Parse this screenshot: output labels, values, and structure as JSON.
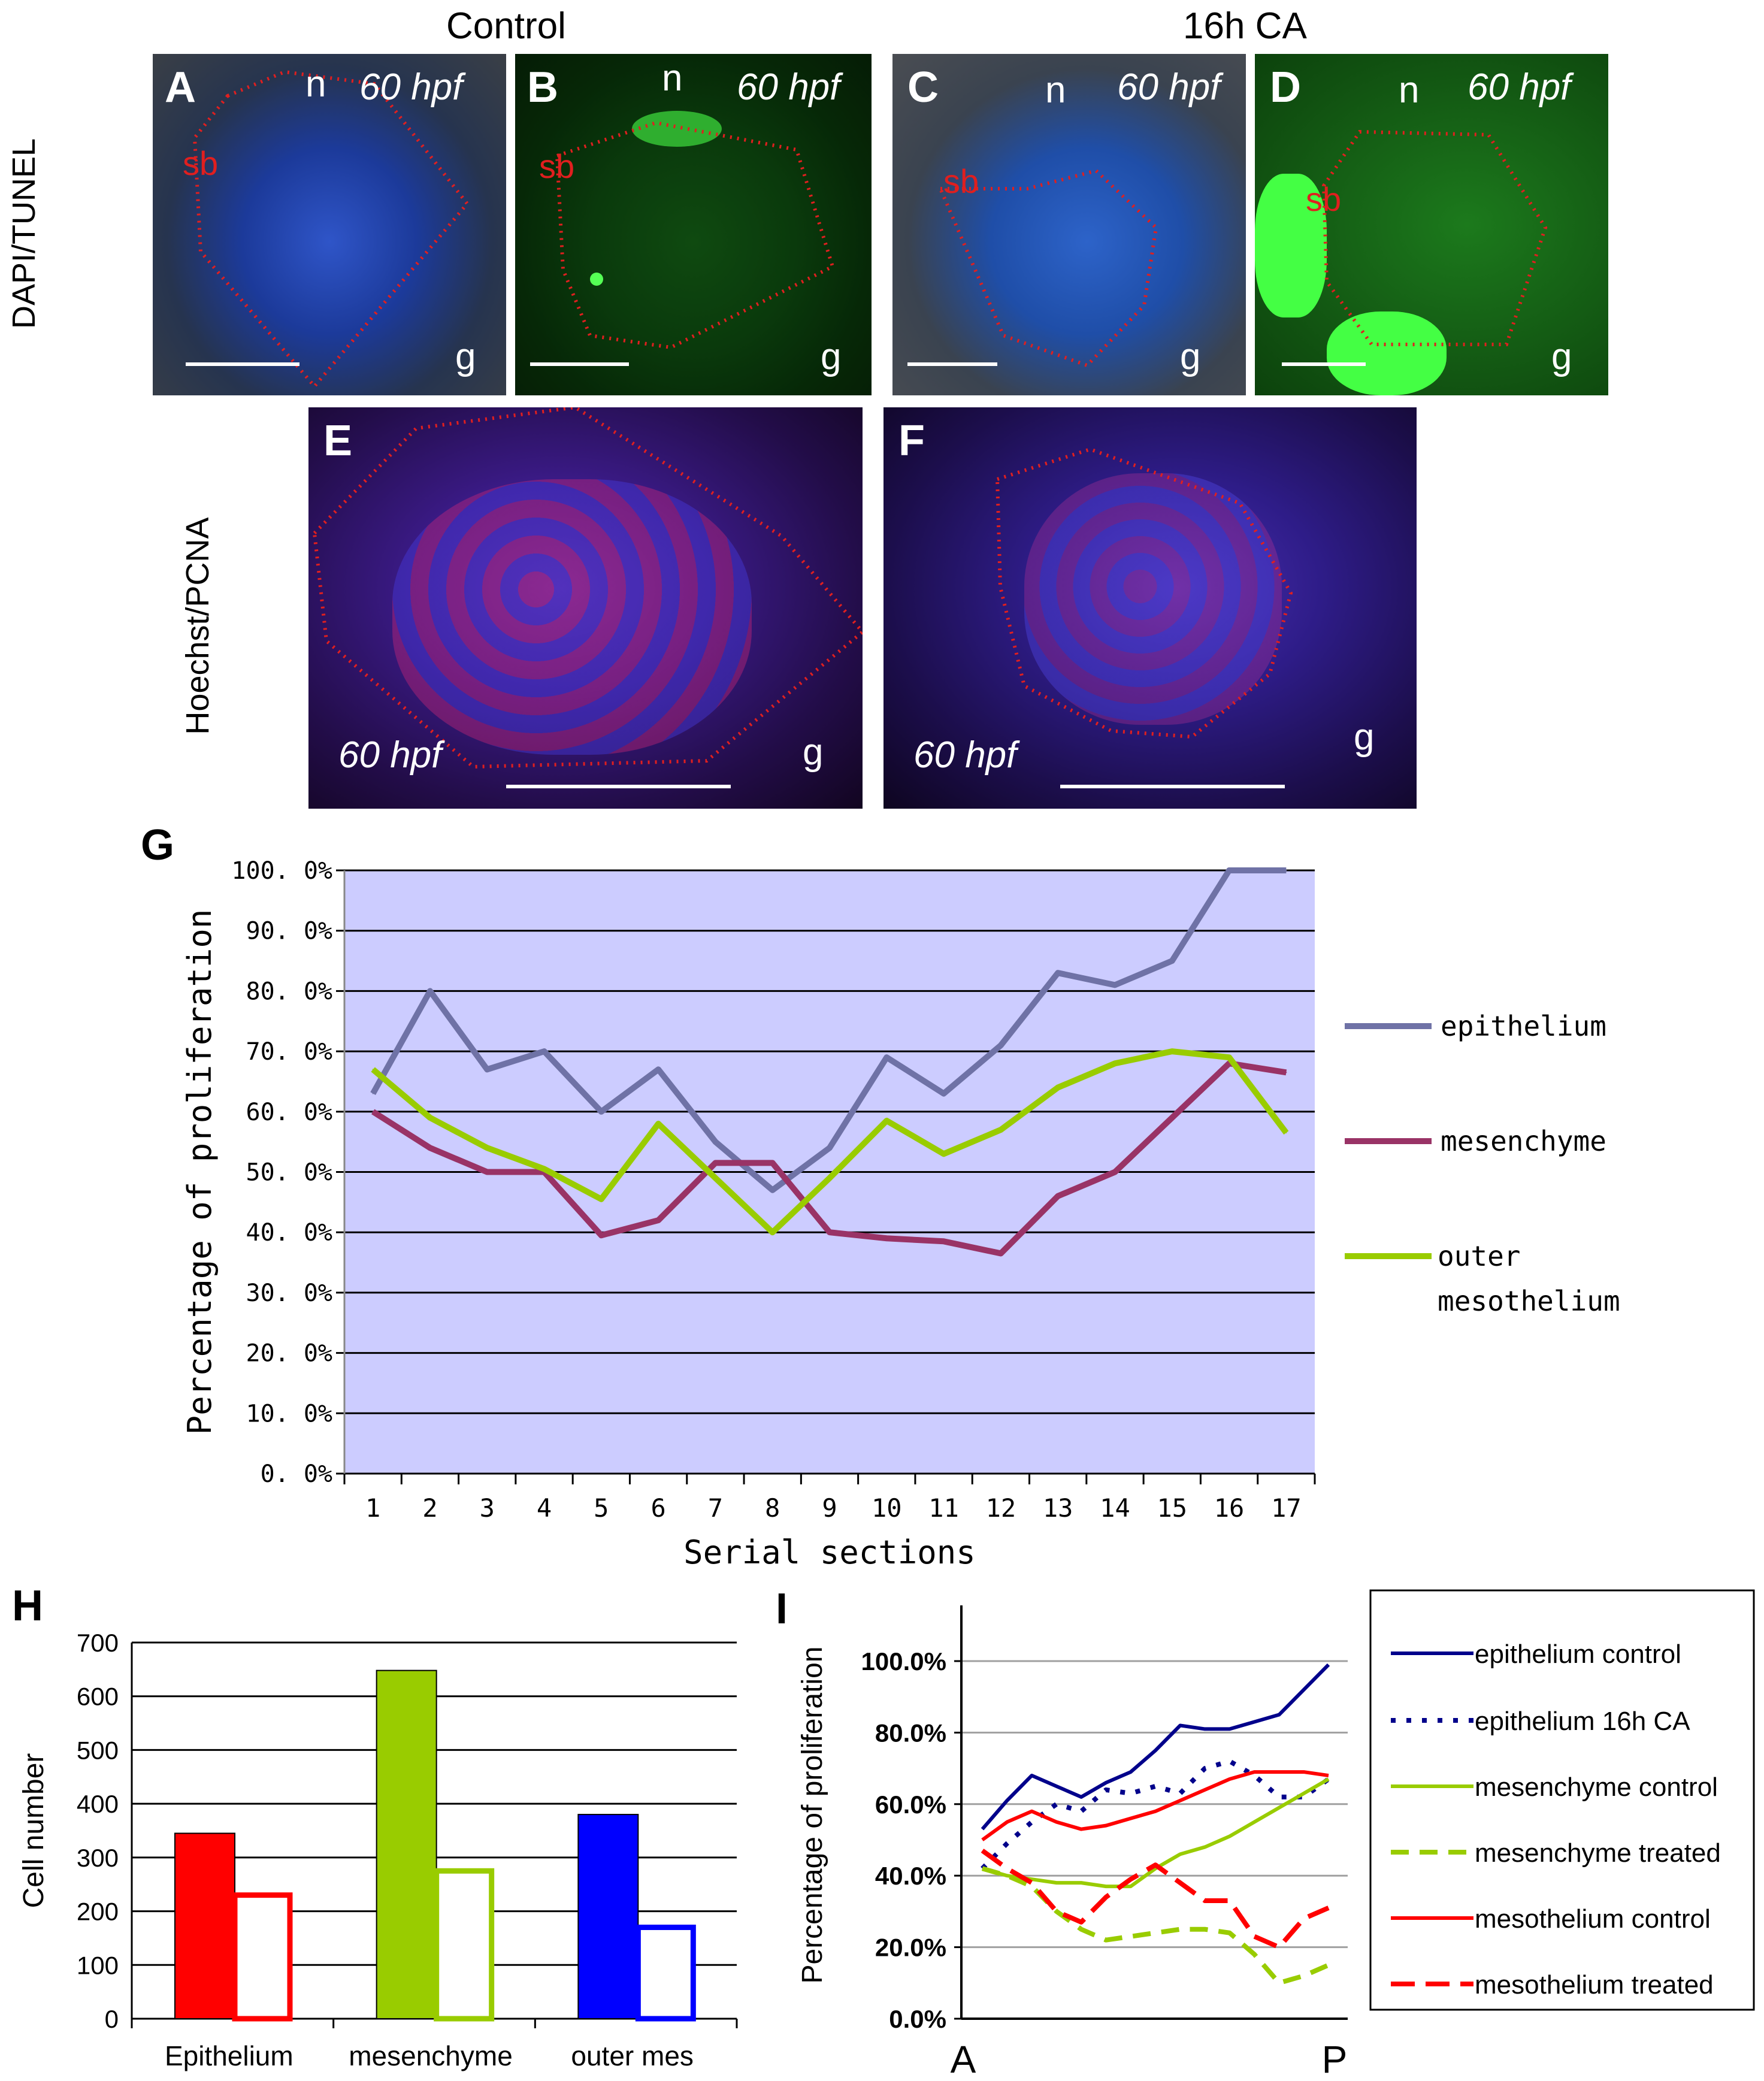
{
  "header": {
    "control": "Control",
    "treated": "16h CA"
  },
  "row_labels": {
    "top": "DAPI/TUNEL",
    "middle": "Hoechst/PCNA"
  },
  "panels": {
    "A": {
      "letter": "A",
      "stage": "60 hpf",
      "n": "n",
      "g": "g",
      "sb": "sb"
    },
    "B": {
      "letter": "B",
      "stage": "60 hpf",
      "n": "n",
      "g": "g",
      "sb": "sb"
    },
    "C": {
      "letter": "C",
      "stage": "60 hpf",
      "n": "n",
      "g": "g",
      "sb": "sb"
    },
    "D": {
      "letter": "D",
      "stage": "60 hpf",
      "n": "n",
      "g": "g",
      "sb": "sb"
    },
    "E": {
      "letter": "E",
      "stage": "60 hpf",
      "g": "g"
    },
    "F": {
      "letter": "F",
      "stage": "60 hpf",
      "g": "g"
    }
  },
  "panel_letters": {
    "G": "G",
    "H": "H",
    "I": "I"
  },
  "chart_data": [
    {
      "panel": "G",
      "type": "line",
      "ylabel": "Percentage of proliferation",
      "xlabel": "Serial sections",
      "ylim": [
        0,
        100
      ],
      "yticks": [
        "0. 0%",
        "10. 0%",
        "20. 0%",
        "30. 0%",
        "40. 0%",
        "50. 0%",
        "60. 0%",
        "70. 0%",
        "80. 0%",
        "90. 0%",
        "100. 0%"
      ],
      "x": [
        1,
        2,
        3,
        4,
        5,
        6,
        7,
        8,
        9,
        10,
        11,
        12,
        13,
        14,
        15,
        16,
        17
      ],
      "grid": true,
      "legend": "right",
      "series": [
        {
          "name": "epithelium",
          "color": "#6f72a6",
          "values": [
            63,
            80,
            67,
            70,
            60,
            67,
            55,
            47,
            54,
            69,
            63,
            71,
            83,
            81,
            85,
            100,
            100
          ]
        },
        {
          "name": "mesenchyme",
          "color": "#993366",
          "values": [
            60,
            54,
            50,
            50,
            39.5,
            42,
            51.5,
            51.5,
            40,
            39,
            38.5,
            36.5,
            46,
            50,
            59,
            68,
            66.5
          ]
        },
        {
          "name_lines": [
            "outer",
            "mesothelium"
          ],
          "color": "#99cc00",
          "values": [
            67,
            59,
            54,
            50.5,
            45.5,
            58,
            49,
            40,
            49,
            58.5,
            53,
            57,
            64,
            68,
            70,
            69,
            56.5
          ]
        }
      ]
    },
    {
      "panel": "H",
      "type": "bar",
      "ylabel": "Cell number",
      "ylim": [
        0,
        700
      ],
      "yticks": [
        "0",
        "100",
        "200",
        "300",
        "400",
        "500",
        "600",
        "700"
      ],
      "categories": [
        "Epithelium",
        "mesenchyme",
        "outer mes"
      ],
      "grid": true,
      "groups": [
        {
          "color": "#ff0000",
          "values": [
            345,
            230
          ]
        },
        {
          "color": "#99cc00",
          "values": [
            648,
            275
          ]
        },
        {
          "color": "#0000ff",
          "values": [
            380,
            170
          ]
        }
      ]
    },
    {
      "panel": "I",
      "type": "line",
      "ylabel": "Percentage of proliferation",
      "ylim": [
        0,
        100
      ],
      "yticks": [
        "0.0%",
        "20.0%",
        "40.0%",
        "60.0%",
        "80.0%",
        "100.0%"
      ],
      "xticks": [
        "A",
        "P"
      ],
      "grid": true,
      "legend": "right",
      "series": [
        {
          "name": "epithelium control",
          "color": "#00008b",
          "dash": "none",
          "values": [
            53,
            61,
            68,
            65,
            62,
            66,
            69,
            75,
            82,
            81,
            81,
            83,
            85,
            92,
            99
          ]
        },
        {
          "name": "epithelium 16h CA",
          "color": "#00008b",
          "dash": "8 18",
          "values": [
            42,
            49,
            55,
            60,
            58,
            64,
            63,
            65,
            63,
            70,
            72,
            68,
            62,
            62,
            67
          ]
        },
        {
          "name": "mesenchyme control",
          "color": "#99cc00",
          "dash": "none",
          "values": [
            42,
            40,
            39,
            38,
            38,
            37,
            37,
            42,
            46,
            48,
            51,
            55,
            59,
            63,
            67
          ]
        },
        {
          "name": "mesenchyme treated",
          "color": "#99cc00",
          "dash": "30 18",
          "values": [
            42,
            40,
            37,
            30,
            25,
            22,
            23,
            24,
            25,
            25,
            24,
            18,
            10,
            12,
            15
          ]
        },
        {
          "name": "mesothelium control",
          "color": "#ff0000",
          "dash": "none",
          "values": [
            50,
            55,
            58,
            55,
            53,
            54,
            56,
            58,
            61,
            64,
            67,
            69,
            69,
            69,
            68
          ]
        },
        {
          "name": "mesothelium treated",
          "color": "#ff0000",
          "dash": "40 18",
          "values": [
            47,
            42,
            38,
            30,
            27,
            34,
            39,
            43,
            38,
            33,
            33,
            23,
            20,
            28,
            31
          ]
        }
      ]
    }
  ]
}
